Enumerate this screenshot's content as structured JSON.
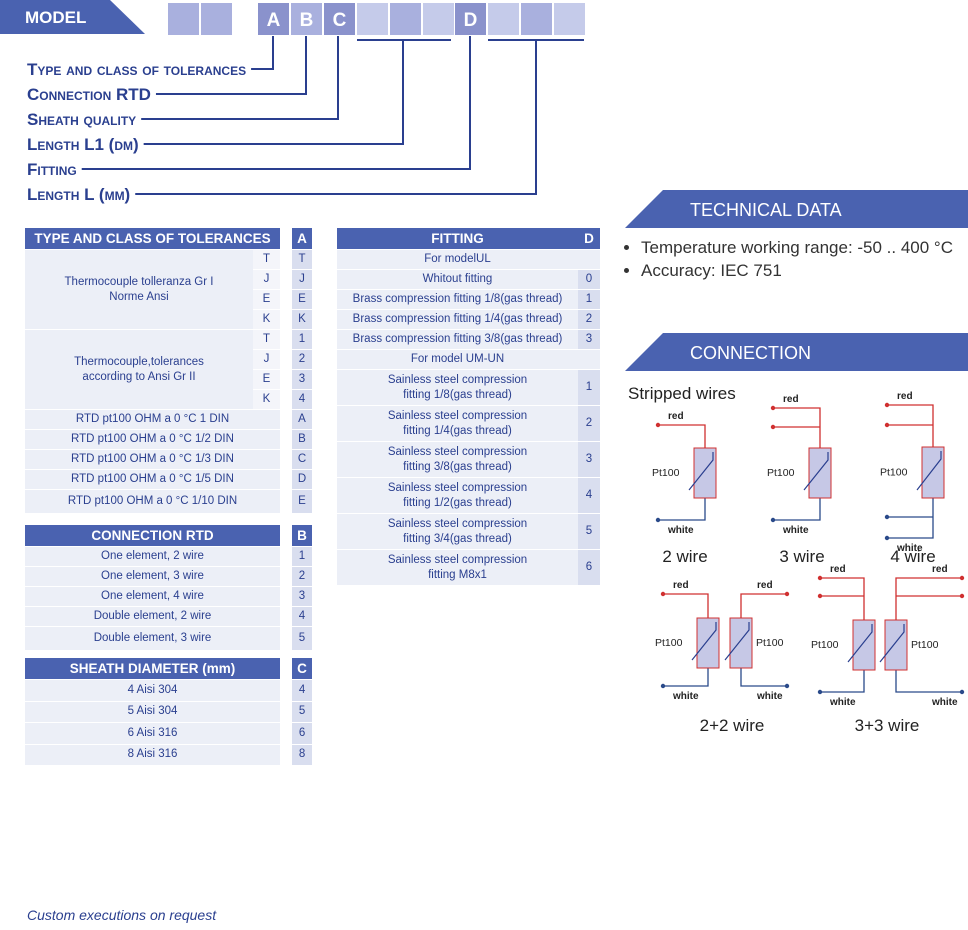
{
  "model": {
    "label": "MODEL",
    "codes": [
      "A",
      "B",
      "C",
      "D"
    ],
    "legend": [
      "Type and class of tolerances",
      "Connection RTD",
      "Sheath quality",
      "Length L1 (dm)",
      "Fitting",
      "Length L (mm)"
    ]
  },
  "tolerances": {
    "title": "TYPE AND CLASS OF TOLERANCES",
    "code": "A",
    "groups": [
      {
        "label": "Thermocouple tolleranza Gr I\nNorme Ansi",
        "rows": [
          [
            "T",
            "T"
          ],
          [
            "J",
            "J"
          ],
          [
            "E",
            "E"
          ],
          [
            "K",
            "K"
          ]
        ]
      },
      {
        "label": "Thermocouple,tolerances\naccording to Ansi Gr II",
        "rows": [
          [
            "T",
            "1"
          ],
          [
            "J",
            "2"
          ],
          [
            "E",
            "3"
          ],
          [
            "K",
            "4"
          ]
        ]
      }
    ],
    "rows": [
      [
        "RTD pt100 OHM a 0 °C 1 DIN",
        "A"
      ],
      [
        "RTD pt100 OHM a 0 °C 1/2 DIN",
        "B"
      ],
      [
        "RTD pt100 OHM a 0 °C 1/3 DIN",
        "C"
      ],
      [
        "RTD pt100 OHM a 0 °C 1/5 DIN",
        "D"
      ],
      [
        "RTD pt100 OHM a 0 °C 1/10 DIN",
        "E"
      ]
    ]
  },
  "connection_rtd": {
    "title": "CONNECTION RTD",
    "code": "B",
    "rows": [
      [
        "One element, 2 wire",
        "1"
      ],
      [
        "One element, 3 wire",
        "2"
      ],
      [
        "One element, 4 wire",
        "3"
      ],
      [
        "Double element, 2 wire",
        "4"
      ],
      [
        "Double element, 3 wire",
        "5"
      ]
    ]
  },
  "sheath": {
    "title": "SHEATH DIAMETER (mm)",
    "code": "C",
    "rows": [
      [
        "4 Aisi 304",
        "4"
      ],
      [
        "5 Aisi 304",
        "5"
      ],
      [
        "6 Aisi 316",
        "6"
      ],
      [
        "8 Aisi 316",
        "8"
      ]
    ]
  },
  "fitting": {
    "title": "FITTING",
    "code": "D",
    "sections": [
      {
        "label": "For modelUL",
        "rows": [
          [
            "Whitout fitting",
            "0"
          ],
          [
            "Brass compression fitting 1/8(gas thread)",
            "1"
          ],
          [
            "Brass compression fitting 1/4(gas thread)",
            "2"
          ],
          [
            "Brass compression fitting 3/8(gas thread)",
            "3"
          ]
        ]
      },
      {
        "label": "For model UM-UN",
        "rows": [
          [
            "Sainless steel compression\nfitting 1/8(gas thread)",
            "1"
          ],
          [
            "Sainless steel compression\nfitting 1/4(gas thread)",
            "2"
          ],
          [
            "Sainless steel compression\nfitting 3/8(gas thread)",
            "3"
          ],
          [
            "Sainless steel compression\nfitting 1/2(gas thread)",
            "4"
          ],
          [
            "Sainless steel compression\nfitting 3/4(gas thread)",
            "5"
          ],
          [
            "Sainless steel compression\nfitting M8x1",
            "6"
          ]
        ]
      }
    ]
  },
  "technical_data": {
    "title": "TECHNICAL DATA",
    "items": [
      "Temperature working range: -50 .. 400 °C",
      "Accuracy: IEC 751"
    ]
  },
  "connection": {
    "title": "CONNECTION",
    "subtitle": "Stripped wires",
    "diagrams": [
      {
        "caption": "2 wire",
        "elements": [
          {
            "top": "red",
            "name": "Pt100",
            "bottom": "white"
          }
        ]
      },
      {
        "caption": "3 wire",
        "elements": [
          {
            "top": "red",
            "name": "Pt100",
            "bottom": "white"
          }
        ]
      },
      {
        "caption": "4 wire",
        "elements": [
          {
            "top": "red",
            "name": "Pt100",
            "bottom": "white"
          }
        ]
      },
      {
        "caption": "2+2 wire",
        "elements": [
          {
            "top": "red",
            "name": "Pt100",
            "bottom": "white"
          },
          {
            "top": "red",
            "name": "Pt100",
            "bottom": "white"
          }
        ]
      },
      {
        "caption": "3+3 wire",
        "elements": [
          {
            "top": "red",
            "name": "Pt100",
            "bottom": "white"
          },
          {
            "top": "red",
            "name": "Pt100",
            "bottom": "white"
          }
        ]
      }
    ]
  },
  "footer": "Custom executions on request"
}
